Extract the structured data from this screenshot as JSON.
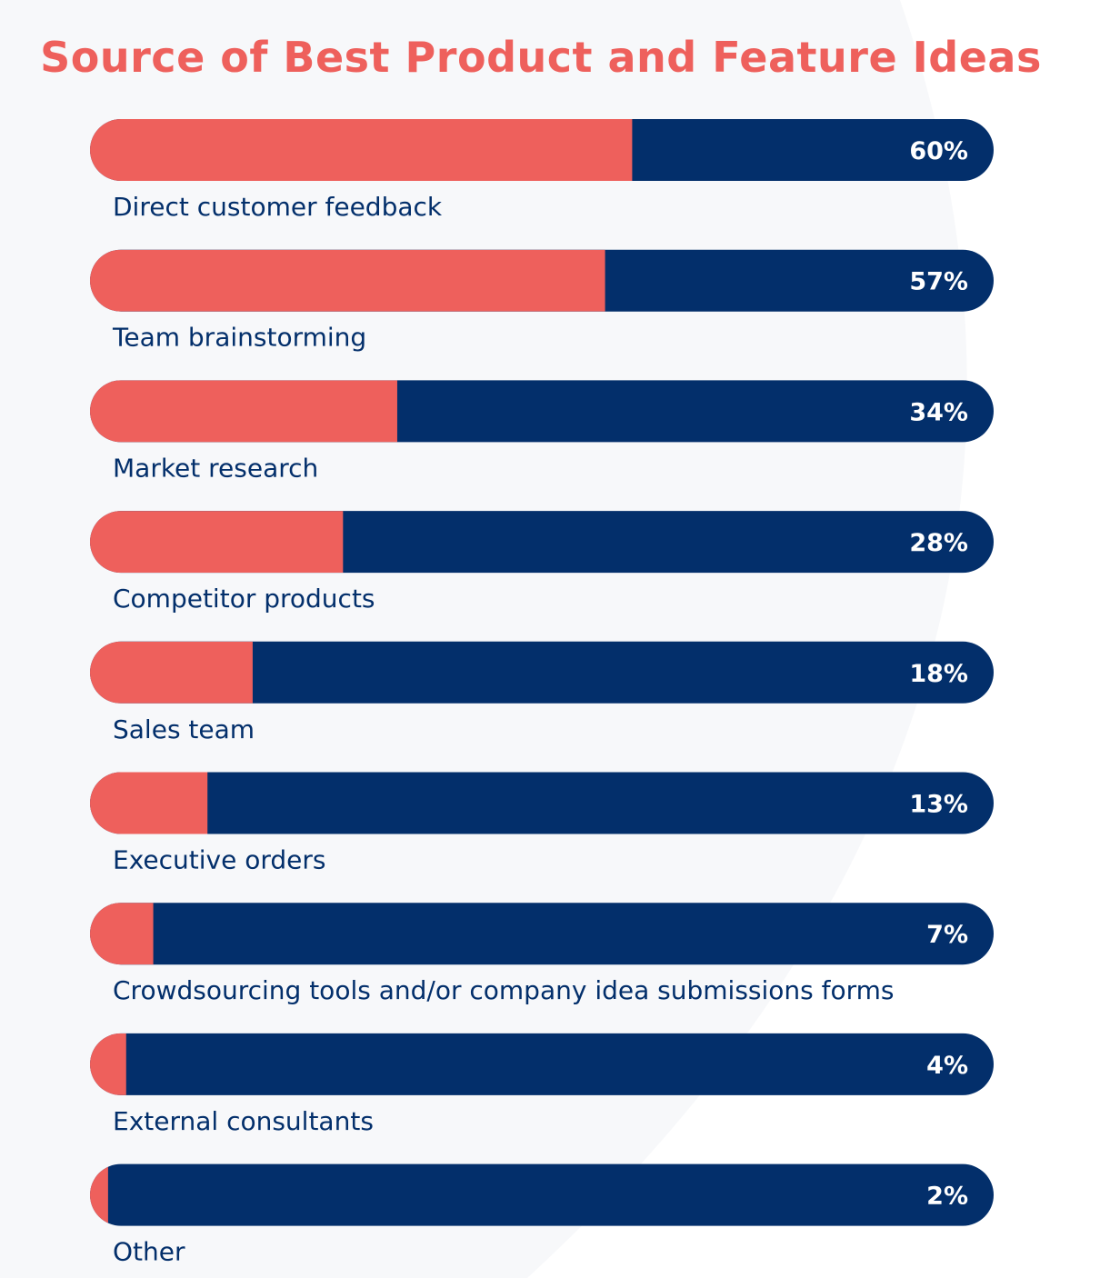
{
  "colors": {
    "accent": "#EE605C",
    "track": "#032F6B",
    "label": "#032F6B",
    "background": "#F7F8FA"
  },
  "chart_data": {
    "type": "bar",
    "orientation": "horizontal",
    "title": "Source of Best Product and Feature Ideas",
    "categories": [
      "Direct customer feedback",
      "Team brainstorming",
      "Market research",
      "Competitor products",
      "Sales team",
      "Executive orders",
      "Crowdsourcing tools and/or company idea submissions forms",
      "External consultants",
      "Other"
    ],
    "values": [
      60,
      57,
      34,
      28,
      18,
      13,
      7,
      4,
      2
    ],
    "data_labels": [
      "60%",
      "57%",
      "34%",
      "28%",
      "18%",
      "13%",
      "7%",
      "4%",
      "2%"
    ],
    "xlim": [
      0,
      100
    ],
    "unit": "%",
    "grid": false
  }
}
